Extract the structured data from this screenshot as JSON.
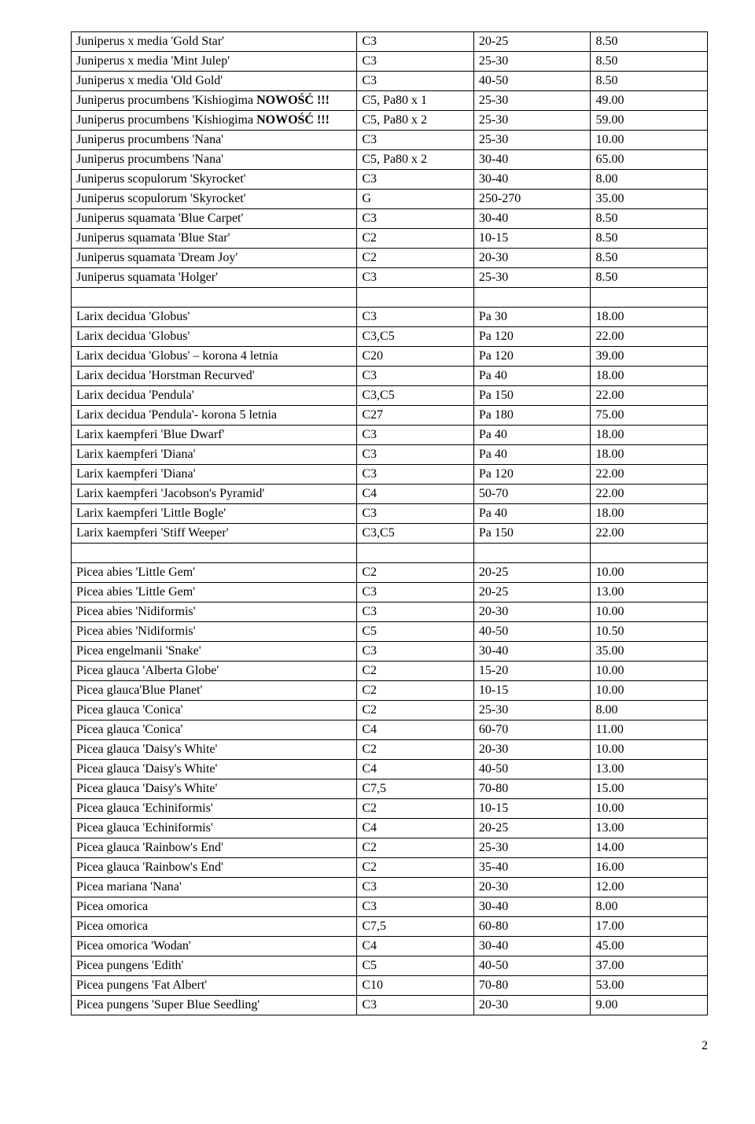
{
  "page_number": "2",
  "rows": [
    {
      "name": "Juniperus x media 'Gold Star'",
      "pot": "C3",
      "size": "20-25",
      "price": "8.50"
    },
    {
      "name": "Juniperus x media 'Mint Julep'",
      "pot": "C3",
      "size": "25-30",
      "price": "8.50"
    },
    {
      "name": "Juniperus x media 'Old Gold'",
      "pot": "C3",
      "size": "40-50",
      "price": "8.50"
    },
    {
      "name_parts": [
        {
          "t": "Juniperus procumbens 'Kishiogima "
        },
        {
          "t": "NOWOŚĆ !!!",
          "bold": true
        }
      ],
      "pot": "C5, Pa80 x 1",
      "size": "25-30",
      "price": "49.00"
    },
    {
      "name_parts": [
        {
          "t": "Juniperus procumbens 'Kishiogima "
        },
        {
          "t": "NOWOŚĆ !!!",
          "bold": true
        }
      ],
      "pot": "C5, Pa80 x 2",
      "size": "25-30",
      "price": "59.00"
    },
    {
      "name": "Juniperus procumbens 'Nana'",
      "pot": "C3",
      "size": "25-30",
      "price": "10.00"
    },
    {
      "name": "Juniperus procumbens 'Nana'",
      "pot": "C5, Pa80 x 2",
      "size": "30-40",
      "price": "65.00"
    },
    {
      "name": "Juniperus scopulorum 'Skyrocket'",
      "pot": "C3",
      "size": "30-40",
      "price": "8.00"
    },
    {
      "name": "Juniperus scopulorum 'Skyrocket'",
      "pot": "G",
      "size": "250-270",
      "price": "35.00"
    },
    {
      "name": "Juniperus squamata 'Blue Carpet'",
      "pot": "C3",
      "size": "30-40",
      "price": "8.50"
    },
    {
      "name": "Juniperus squamata 'Blue Star'",
      "pot": "C2",
      "size": "10-15",
      "price": "8.50"
    },
    {
      "name": "Juniperus squamata 'Dream Joy'",
      "pot": "C2",
      "size": "20-30",
      "price": "8.50"
    },
    {
      "name": "Juniperus squamata 'Holger'",
      "pot": "C3",
      "size": "25-30",
      "price": "8.50"
    },
    {
      "name": "",
      "pot": "",
      "size": "",
      "price": ""
    },
    {
      "name": "Larix decidua 'Globus'",
      "pot": "C3",
      "size": "Pa 30",
      "price": "18.00"
    },
    {
      "name": "Larix decidua 'Globus'",
      "pot": "C3,C5",
      "size": "Pa 120",
      "price": "22.00"
    },
    {
      "name": "Larix decidua 'Globus' – korona 4 letnia",
      "pot": "C20",
      "size": "Pa 120",
      "price": "39.00"
    },
    {
      "name": "Larix decidua 'Horstman Recurved'",
      "pot": "C3",
      "size": "Pa 40",
      "price": "18.00"
    },
    {
      "name": "Larix decidua 'Pendula'",
      "pot": "C3,C5",
      "size": "Pa 150",
      "price": "22.00"
    },
    {
      "name": "Larix decidua 'Pendula'- korona  5 letnia",
      "pot": "C27",
      "size": "Pa 180",
      "price": "75.00"
    },
    {
      "name": "Larix kaempferi 'Blue Dwarf'",
      "pot": "C3",
      "size": "Pa 40",
      "price": "18.00"
    },
    {
      "name": "Larix kaempferi 'Diana'",
      "pot": "C3",
      "size": "Pa 40",
      "price": "18.00"
    },
    {
      "name": "Larix kaempferi 'Diana'",
      "pot": "C3",
      "size": "Pa 120",
      "price": "22.00"
    },
    {
      "name": "Larix kaempferi 'Jacobson's Pyramid'",
      "pot": "C4",
      "size": "50-70",
      "price": "22.00"
    },
    {
      "name": "Larix kaempferi 'Little Bogle'",
      "pot": "C3",
      "size": "Pa 40",
      "price": "18.00"
    },
    {
      "name": "Larix kaempferi 'Stiff Weeper'",
      "pot": "C3,C5",
      "size": "Pa 150",
      "price": "22.00"
    },
    {
      "name": "",
      "pot": "",
      "size": "",
      "price": ""
    },
    {
      "name": "Picea abies 'Little Gem'",
      "pot": "C2",
      "size": "20-25",
      "price": "10.00"
    },
    {
      "name": "Picea abies 'Little Gem'",
      "pot": "C3",
      "size": "20-25",
      "price": "13.00"
    },
    {
      "name": "Picea abies 'Nidiformis'",
      "pot": "C3",
      "size": "20-30",
      "price": "10.00"
    },
    {
      "name": "Picea abies 'Nidiformis'",
      "pot": "C5",
      "size": "40-50",
      "price": "10.50"
    },
    {
      "name": "Picea engelmanii 'Snake'",
      "pot": "C3",
      "size": "30-40",
      "price": "35.00"
    },
    {
      "name": "Picea glauca 'Alberta Globe'",
      "pot": "C2",
      "size": "15-20",
      "price": "10.00"
    },
    {
      "name": "Picea glauca'Blue Planet'",
      "pot": "C2",
      "size": "10-15",
      "price": "10.00"
    },
    {
      "name": "Picea glauca 'Conica'",
      "pot": "C2",
      "size": "25-30",
      "price": "8.00"
    },
    {
      "name": "Picea glauca 'Conica'",
      "pot": "C4",
      "size": "60-70",
      "price": "11.00"
    },
    {
      "name": "Picea glauca 'Daisy's White'",
      "pot": "C2",
      "size": "20-30",
      "price": "10.00"
    },
    {
      "name": "Picea glauca 'Daisy's White'",
      "pot": "C4",
      "size": "40-50",
      "price": "13.00"
    },
    {
      "name": "Picea glauca 'Daisy's White'",
      "pot": "C7,5",
      "size": "70-80",
      "price": "15.00"
    },
    {
      "name": "Picea glauca 'Echiniformis'",
      "pot": "C2",
      "size": "10-15",
      "price": "10.00"
    },
    {
      "name": "Picea glauca 'Echiniformis'",
      "pot": "C4",
      "size": "20-25",
      "price": "13.00"
    },
    {
      "name": "Picea glauca 'Rainbow's End'",
      "pot": "C2",
      "size": "25-30",
      "price": "14.00"
    },
    {
      "name": "Picea glauca 'Rainbow's End'",
      "pot": "C2",
      "size": "35-40",
      "price": "16.00"
    },
    {
      "name": "Picea mariana 'Nana'",
      "pot": "C3",
      "size": "20-30",
      "price": "12.00"
    },
    {
      "name": "Picea omorica",
      "pot": "C3",
      "size": "30-40",
      "price": "8.00"
    },
    {
      "name": "Picea omorica",
      "pot": "C7,5",
      "size": "60-80",
      "price": "17.00"
    },
    {
      "name": "Picea omorica 'Wodan'",
      "pot": "C4",
      "size": "30-40",
      "price": "45.00"
    },
    {
      "name": "Picea pungens 'Edith'",
      "pot": "C5",
      "size": "40-50",
      "price": "37.00"
    },
    {
      "name": "Picea pungens 'Fat Albert'",
      "pot": "C10",
      "size": "70-80",
      "price": "53.00"
    },
    {
      "name": "Picea pungens 'Super Blue Seedling'",
      "pot": "C3",
      "size": "20-30",
      "price": "9.00"
    }
  ]
}
